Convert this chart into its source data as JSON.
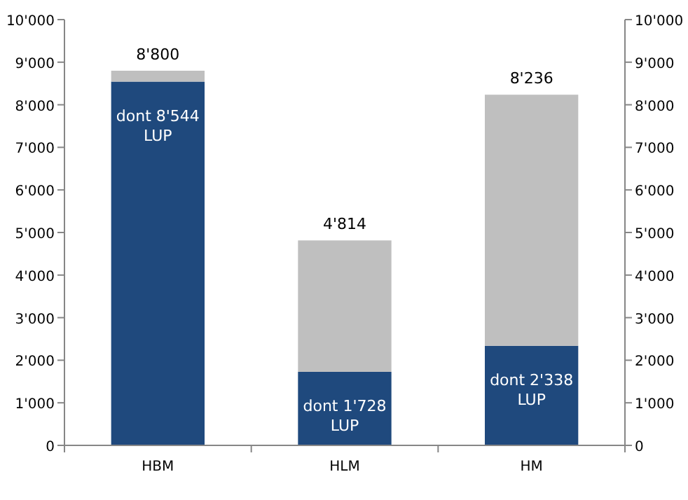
{
  "chart_data": {
    "type": "bar",
    "stacked": true,
    "categories": [
      "HBM",
      "HLM",
      "HM"
    ],
    "series": [
      {
        "color": "#1f497d",
        "values": [
          8544,
          1728,
          2338
        ],
        "value_labels": [
          "dont 8'544 LUP",
          "dont 1'728 LUP",
          "dont 2'338 LUP"
        ]
      },
      {
        "color": "#bfbfbf",
        "values": [
          256,
          3086,
          5898
        ]
      }
    ],
    "totals": [
      "8'800",
      "4'814",
      "8'236"
    ],
    "ylim": [
      0,
      10000
    ],
    "yticks": [
      0,
      {
        "value": 1000,
        "label": "1'000"
      },
      {
        "value": 2000,
        "label": "2'000"
      },
      {
        "value": 3000,
        "label": "3'000"
      },
      {
        "value": 4000,
        "label": "4'000"
      },
      {
        "value": 5000,
        "label": "5'000"
      },
      {
        "value": 6000,
        "label": "6'000"
      },
      {
        "value": 7000,
        "label": "7'000"
      },
      {
        "value": 8000,
        "label": "8'000"
      },
      {
        "value": 9000,
        "label": "9'000"
      },
      {
        "value": 10000,
        "label": "10'000"
      }
    ],
    "y2lim": [
      0,
      10000
    ],
    "y2ticks": [
      0,
      {
        "value": 1000,
        "label": "1'000"
      },
      {
        "value": 2000,
        "label": "2'000"
      },
      {
        "value": 3000,
        "label": "3'000"
      },
      {
        "value": 4000,
        "label": "4'000"
      },
      {
        "value": 5000,
        "label": "5'000"
      },
      {
        "value": 6000,
        "label": "6'000"
      },
      {
        "value": 7000,
        "label": "7'000"
      },
      {
        "value": 8000,
        "label": "8'000"
      },
      {
        "value": 9000,
        "label": "9'000"
      },
      {
        "value": 10000,
        "label": "10'000"
      }
    ],
    "grid": false
  }
}
